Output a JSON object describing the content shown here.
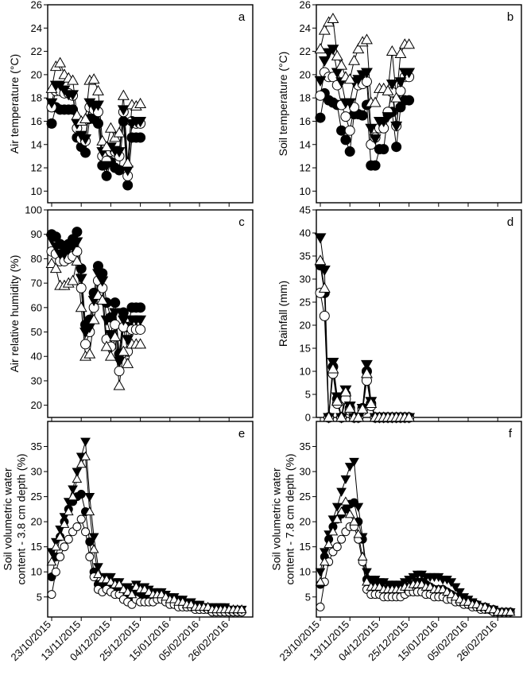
{
  "dates": [
    "23/10/2015",
    "13/11/2015",
    "04/12/2015",
    "25/12/2015",
    "15/01/2016",
    "05/02/2016",
    "26/02/2016"
  ],
  "date_ticks": [
    0,
    21,
    42,
    63,
    84,
    105,
    126
  ],
  "chart_data": [
    {
      "type": "line",
      "letter": "a",
      "ylabel": "Air temperature (°C)",
      "ylim": [
        9,
        26
      ],
      "yticks": [
        10,
        12,
        14,
        16,
        18,
        20,
        22,
        24,
        26
      ],
      "x": [
        0,
        3,
        6,
        9,
        12,
        15,
        18,
        21,
        24,
        27,
        30,
        33,
        36,
        39,
        42,
        45,
        48,
        51,
        54,
        57,
        60,
        63
      ],
      "series": [
        {
          "marker": "circle-filled",
          "values": [
            15.8,
            17.2,
            17.0,
            17.0,
            17.0,
            17.0,
            14.6,
            13.8,
            13.3,
            16.2,
            16.2,
            15.8,
            12.2,
            11.3,
            12.5,
            12.0,
            11.8,
            16.0,
            10.5,
            14.6,
            14.6,
            14.6
          ]
        },
        {
          "marker": "circle-open",
          "values": [
            17.2,
            18.6,
            18.6,
            18.4,
            18.4,
            18.2,
            15.4,
            14.5,
            14.3,
            17.2,
            17.0,
            16.8,
            13.0,
            12.6,
            13.4,
            13.4,
            13.0,
            16.8,
            11.3,
            16.0,
            15.8,
            15.8
          ]
        },
        {
          "marker": "triangle-down",
          "values": [
            17.6,
            19.1,
            19.1,
            18.7,
            18.3,
            18.3,
            15.8,
            14.8,
            14.5,
            17.6,
            17.3,
            17.4,
            13.4,
            12.2,
            13.8,
            13.5,
            13.4,
            17.0,
            11.8,
            15.8,
            16.0,
            16.0
          ]
        },
        {
          "marker": "triangle-up",
          "values": [
            18.8,
            20.7,
            21.0,
            20.0,
            19.7,
            19.5,
            16.5,
            16.0,
            16.2,
            19.5,
            19.6,
            18.6,
            14.3,
            13.8,
            15.4,
            14.6,
            15.0,
            18.2,
            12.4,
            17.4,
            17.3,
            17.5
          ]
        }
      ]
    },
    {
      "type": "line",
      "letter": "b",
      "ylabel": "Soil temperature (°C)",
      "ylim": [
        9,
        26
      ],
      "yticks": [
        10,
        12,
        14,
        16,
        18,
        20,
        22,
        24,
        26
      ],
      "x": [
        0,
        3,
        6,
        9,
        12,
        15,
        18,
        21,
        24,
        27,
        30,
        33,
        36,
        39,
        42,
        45,
        48,
        51,
        54,
        57,
        60,
        63
      ],
      "series": [
        {
          "marker": "circle-filled",
          "values": [
            16.3,
            18.4,
            17.8,
            17.6,
            17.4,
            15.2,
            14.4,
            13.4,
            16.6,
            16.6,
            16.5,
            17.4,
            12.2,
            12.2,
            13.6,
            13.6,
            16.6,
            16.8,
            13.8,
            17.2,
            17.8,
            17.8
          ]
        },
        {
          "marker": "circle-open",
          "values": [
            18.2,
            20.2,
            19.8,
            19.8,
            19.1,
            17.4,
            16.4,
            15.2,
            17.2,
            19.1,
            19.2,
            19.4,
            14.0,
            14.6,
            15.4,
            15.4,
            16.8,
            18.5,
            15.6,
            18.6,
            19.8,
            19.8
          ]
        },
        {
          "marker": "triangle-down",
          "values": [
            19.5,
            21.2,
            21.9,
            22.2,
            20.2,
            19.4,
            17.6,
            17.6,
            19.4,
            19.6,
            20.0,
            20.2,
            15.4,
            14.5,
            16.0,
            16.0,
            16.4,
            19.2,
            15.6,
            19.4,
            20.2,
            20.2
          ]
        },
        {
          "marker": "triangle-up",
          "values": [
            22.2,
            23.8,
            24.5,
            24.8,
            21.6,
            20.8,
            19.8,
            19.6,
            21.2,
            22.2,
            22.8,
            23.0,
            17.6,
            17.6,
            18.8,
            18.8,
            18.6,
            22.0,
            18.0,
            21.8,
            22.6,
            22.6
          ]
        }
      ]
    },
    {
      "type": "line",
      "letter": "c",
      "ylabel": "Air relative humidity (%)",
      "ylim": [
        15,
        100
      ],
      "yticks": [
        20,
        30,
        40,
        50,
        60,
        70,
        80,
        90,
        100
      ],
      "x": [
        0,
        3,
        6,
        9,
        12,
        15,
        18,
        21,
        24,
        27,
        30,
        33,
        36,
        39,
        42,
        45,
        48,
        51,
        54,
        57,
        60,
        63
      ],
      "series": [
        {
          "marker": "circle-filled",
          "values": [
            90,
            89,
            86,
            85,
            86,
            88,
            91,
            76,
            53,
            55,
            66,
            77,
            74,
            62,
            56,
            62,
            41,
            58,
            52,
            60,
            60,
            60
          ]
        },
        {
          "marker": "circle-open",
          "values": [
            83,
            82,
            79,
            79,
            80,
            81,
            83,
            68,
            45,
            50,
            60,
            71,
            68,
            47,
            44,
            53,
            34,
            52,
            42,
            51,
            51,
            51
          ]
        },
        {
          "marker": "triangle-down",
          "values": [
            88,
            85,
            82,
            82,
            84,
            85,
            87,
            72,
            50,
            52,
            63,
            74,
            71,
            55,
            49,
            58,
            38,
            55,
            47,
            55,
            55,
            55
          ]
        },
        {
          "marker": "triangle-up",
          "values": [
            78,
            76,
            69,
            69,
            70,
            71,
            79,
            60,
            40,
            41,
            55,
            65,
            63,
            44,
            40,
            48,
            28,
            42,
            37,
            45,
            45,
            45
          ]
        }
      ]
    },
    {
      "type": "line",
      "letter": "d",
      "ylabel": "Rainfall (mm)",
      "ylim": [
        0,
        45
      ],
      "yticks": [
        0,
        5,
        10,
        15,
        20,
        25,
        30,
        35,
        40,
        45
      ],
      "x": [
        0,
        3,
        6,
        9,
        12,
        15,
        18,
        21,
        24,
        27,
        30,
        33,
        36,
        39,
        42,
        45,
        48,
        51,
        54,
        57,
        60,
        63
      ],
      "series": [
        {
          "marker": "circle-filled",
          "values": [
            33,
            27,
            0,
            11,
            4,
            0,
            5,
            2,
            0,
            0,
            2,
            10,
            3,
            0,
            0,
            0,
            0,
            0,
            0,
            0,
            0,
            0
          ]
        },
        {
          "marker": "circle-open",
          "values": [
            27,
            22,
            0,
            9.5,
            3,
            0,
            4,
            1.5,
            0,
            0,
            1.5,
            8,
            2.5,
            0,
            0,
            0,
            0,
            0,
            0,
            0,
            0,
            0
          ]
        },
        {
          "marker": "triangle-down",
          "values": [
            39,
            32,
            0,
            12,
            4.5,
            0,
            6,
            2.5,
            0,
            0,
            2,
            11.5,
            3.5,
            0,
            0,
            0,
            0,
            0,
            0,
            0,
            0,
            0
          ]
        },
        {
          "marker": "triangle-up",
          "values": [
            34,
            28,
            0,
            10.5,
            3.5,
            0,
            5.5,
            2,
            0,
            0,
            1.8,
            9.5,
            3,
            0,
            0,
            0,
            0,
            0,
            0,
            0,
            0,
            0
          ]
        }
      ]
    },
    {
      "type": "line",
      "letter": "e",
      "ylabel": "Soil volumetric water\ncontent - 3.8 cm depth (%)",
      "ylim": [
        1,
        40
      ],
      "yticks": [
        5,
        10,
        15,
        20,
        25,
        30,
        35
      ],
      "x": [
        0,
        3,
        6,
        9,
        12,
        15,
        18,
        21,
        24,
        27,
        30,
        33,
        36,
        39,
        42,
        45,
        48,
        51,
        54,
        57,
        60,
        63,
        66,
        69,
        72,
        75,
        78,
        81,
        84,
        87,
        90,
        93,
        96,
        99,
        102,
        105,
        108,
        111,
        114,
        117,
        120,
        123,
        126,
        129,
        132,
        135
      ],
      "series": [
        {
          "marker": "circle-filled",
          "values": [
            9,
            13,
            17,
            20,
            22.5,
            24,
            25,
            25.5,
            22,
            16,
            10,
            7.5,
            7,
            7,
            6.5,
            6,
            6,
            5,
            4.5,
            4,
            5.5,
            5,
            5,
            4.5,
            4.5,
            5,
            5,
            4.5,
            4,
            4,
            3.5,
            3.5,
            3,
            3,
            3,
            2.5,
            2.5,
            2.5,
            2.5,
            2.5,
            2.5,
            2.5,
            2,
            2,
            2,
            2
          ]
        },
        {
          "marker": "circle-open",
          "values": [
            5.5,
            10,
            13,
            15,
            16.5,
            18,
            19,
            20.5,
            18,
            13,
            9,
            6.5,
            6,
            6.5,
            6,
            5.5,
            5.5,
            4.5,
            4,
            3.5,
            4.5,
            4,
            4,
            4,
            4,
            4.5,
            4.5,
            4,
            3.5,
            3.5,
            3,
            3,
            3,
            3,
            2.5,
            2.5,
            2.5,
            2.5,
            2,
            2,
            2,
            2,
            2,
            2,
            2,
            2
          ]
        },
        {
          "marker": "triangle-down",
          "values": [
            14,
            16,
            18.5,
            21,
            24,
            26.5,
            30,
            33,
            36,
            25,
            17,
            11,
            9,
            9,
            9,
            8,
            8,
            7,
            7,
            6.5,
            7.5,
            7,
            7,
            6.5,
            6,
            6,
            6,
            5.5,
            5,
            5,
            4.5,
            4.5,
            4,
            4,
            3.5,
            3.5,
            3,
            3,
            3,
            3,
            3,
            3,
            2.5,
            2.5,
            2.5,
            2.5
          ]
        },
        {
          "marker": "triangle-up",
          "values": [
            12,
            15,
            17,
            19.5,
            22,
            25,
            28.5,
            31.5,
            33,
            22,
            14.5,
            9.5,
            8.5,
            8.5,
            8,
            7.5,
            7.5,
            6.5,
            6,
            5.5,
            7,
            6.5,
            6.5,
            6,
            5.5,
            5.5,
            5.5,
            5,
            4.5,
            4.5,
            4,
            4,
            3.5,
            3.5,
            3,
            3,
            3,
            3,
            2.5,
            2.5,
            2.5,
            2.5,
            2.5,
            2.5,
            2.5,
            2.5
          ]
        }
      ]
    },
    {
      "type": "line",
      "letter": "f",
      "ylabel": "Soil volumetric water\ncontent - 7.8 cm depth (%)",
      "ylim": [
        1,
        40
      ],
      "yticks": [
        5,
        10,
        15,
        20,
        25,
        30,
        35
      ],
      "x": [
        0,
        3,
        6,
        9,
        12,
        15,
        18,
        21,
        24,
        27,
        30,
        33,
        36,
        39,
        42,
        45,
        48,
        51,
        54,
        57,
        60,
        63,
        66,
        69,
        72,
        75,
        78,
        81,
        84,
        87,
        90,
        93,
        96,
        99,
        102,
        105,
        108,
        111,
        114,
        117,
        120,
        123,
        126,
        129,
        132,
        135
      ],
      "series": [
        {
          "marker": "circle-filled",
          "values": [
            7.5,
            13,
            16.5,
            19,
            20.5,
            21.5,
            22.5,
            23.5,
            23.8,
            20,
            16.5,
            8.5,
            7.5,
            7.5,
            7,
            6.5,
            6.5,
            6.5,
            6.5,
            6.5,
            6.5,
            7,
            7.5,
            8,
            8,
            7.5,
            7,
            6.5,
            6.5,
            6.5,
            6,
            5.5,
            5,
            4.5,
            4,
            4,
            3.5,
            3.5,
            3,
            3,
            2.5,
            2.5,
            2,
            2,
            2,
            2
          ]
        },
        {
          "marker": "circle-open",
          "values": [
            3,
            8,
            12,
            14,
            15,
            16.5,
            18,
            19,
            19,
            16.5,
            12,
            6.5,
            5.5,
            5.5,
            5.5,
            5,
            5,
            5,
            5,
            5,
            5.5,
            6,
            6,
            6,
            6,
            5.5,
            5.5,
            5,
            5,
            5,
            4.5,
            4.5,
            4,
            4,
            3.5,
            3.5,
            3,
            3,
            2.5,
            2.5,
            2.5,
            2,
            2,
            2,
            2,
            2
          ]
        },
        {
          "marker": "triangle-down",
          "values": [
            10,
            14,
            17.5,
            20.5,
            23,
            26,
            28.5,
            31,
            32,
            23,
            17,
            10,
            8.5,
            8.5,
            8,
            8,
            7.5,
            7.5,
            7.5,
            7.5,
            8,
            8.5,
            9,
            9.5,
            9.5,
            9,
            9,
            9,
            9,
            8.5,
            8.5,
            8,
            7,
            6,
            5,
            4.5,
            4,
            3.5,
            3,
            3,
            2.5,
            2.5,
            2,
            2,
            2,
            2
          ]
        },
        {
          "marker": "triangle-up",
          "values": [
            8,
            12,
            15.5,
            18,
            20.5,
            22,
            24,
            21.5,
            20,
            17.5,
            13,
            8,
            7,
            7,
            7,
            6.5,
            6.5,
            6.5,
            6.5,
            6.5,
            7,
            7,
            7.5,
            7.5,
            7.5,
            7,
            7,
            6.5,
            6.5,
            6.5,
            6,
            5.5,
            5,
            4.5,
            4,
            4,
            3.5,
            3.5,
            3,
            3,
            2.5,
            2.5,
            2,
            2,
            2,
            2
          ]
        }
      ]
    }
  ]
}
